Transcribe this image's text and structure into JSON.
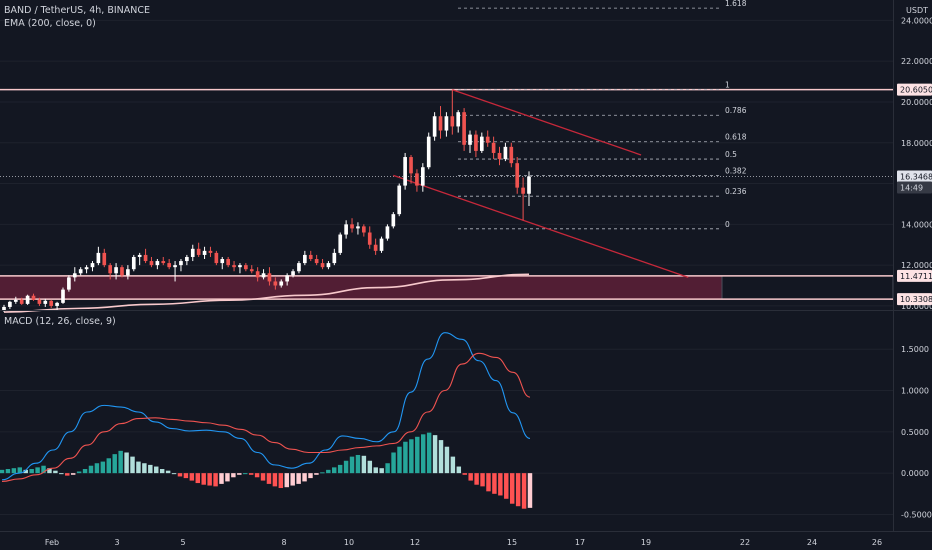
{
  "header": {
    "symbol_line": "BAND / TetherUS, 4h, BINANCE",
    "indicator_line": "EMA (200, close, 0)",
    "currency": "USDT"
  },
  "macd_header": {
    "label": "MACD (12, 26, close, 9)"
  },
  "colors": {
    "background": "#131722",
    "candle_up": "#ffffff",
    "candle_down": "#ef5350",
    "ema": "#f8c9cc",
    "zone_fill": "#5a1f36",
    "channel": "#c6283a",
    "macd_line": "#2196f3",
    "signal_line": "#ef5350",
    "hist_up_strong": "#26a69a",
    "hist_up_weak": "#b2dfdb",
    "hist_down_strong": "#ff5252",
    "hist_down_weak": "#ffcdd2"
  },
  "price_axis": {
    "ticks": [
      "24.0000",
      "22.0000",
      "20.0000",
      "18.0000",
      "16.0000",
      "14.0000",
      "12.0000",
      "10.0000"
    ],
    "badges": [
      {
        "text": "20.6050",
        "style": "level"
      },
      {
        "text": "16.3468",
        "style": "price"
      },
      {
        "text": "14:49",
        "style": "time"
      },
      {
        "text": "11.4711",
        "style": "level"
      },
      {
        "text": "10.3308",
        "style": "level"
      }
    ]
  },
  "macd_axis": {
    "ticks": [
      "1.5000",
      "1.0000",
      "0.5000",
      "0.0000",
      "-0.5000"
    ]
  },
  "time_axis": {
    "labels": [
      "Feb",
      "3",
      "5",
      "8",
      "10",
      "12",
      "15",
      "17",
      "19",
      "22",
      "24",
      "26"
    ]
  },
  "fibonacci": {
    "levels": [
      {
        "label": "1",
        "price": 20.605
      },
      {
        "label": "0.786",
        "price": 19.35
      },
      {
        "label": "0.618",
        "price": 18.05
      },
      {
        "label": "0.5",
        "price": 17.2
      },
      {
        "label": "0.382",
        "price": 16.4
      },
      {
        "label": "0.236",
        "price": 15.38
      },
      {
        "label": "0",
        "price": 13.78
      },
      {
        "label": "1.618",
        "price": 24.6
      }
    ]
  },
  "horizontal_levels": [
    20.605,
    11.4711,
    10.3308
  ],
  "last_price": 16.3468,
  "support_zone": {
    "top": 11.4711,
    "bottom": 10.3308
  },
  "chart_data": {
    "type": "candlestick",
    "title": "BAND / TetherUS, 4h, BINANCE",
    "interval": "4h",
    "ylim": [
      9.8,
      25.0
    ],
    "ohlc": [
      [
        9.8,
        10.05,
        9.7,
        9.95
      ],
      [
        9.95,
        10.25,
        9.85,
        10.2
      ],
      [
        10.2,
        10.45,
        10.1,
        10.3
      ],
      [
        10.3,
        10.4,
        10.05,
        10.1
      ],
      [
        10.1,
        10.55,
        10.05,
        10.5
      ],
      [
        10.5,
        10.6,
        10.25,
        10.3
      ],
      [
        10.3,
        10.4,
        10.0,
        10.1
      ],
      [
        10.1,
        10.35,
        9.95,
        10.25
      ],
      [
        10.25,
        10.3,
        9.9,
        10.0
      ],
      [
        10.0,
        10.2,
        9.8,
        10.15
      ],
      [
        10.15,
        10.9,
        10.1,
        10.8
      ],
      [
        10.8,
        11.5,
        10.7,
        11.4
      ],
      [
        11.4,
        11.9,
        11.2,
        11.6
      ],
      [
        11.6,
        11.9,
        11.5,
        11.8
      ],
      [
        11.8,
        12.0,
        11.6,
        11.9
      ],
      [
        11.9,
        12.2,
        11.7,
        12.1
      ],
      [
        12.1,
        12.9,
        12.0,
        12.6
      ],
      [
        12.6,
        12.8,
        11.9,
        12.0
      ],
      [
        12.0,
        12.1,
        11.3,
        11.6
      ],
      [
        11.6,
        12.1,
        11.3,
        11.9
      ],
      [
        11.9,
        12.0,
        11.4,
        11.5
      ],
      [
        11.5,
        12.0,
        11.3,
        11.8
      ],
      [
        11.8,
        12.5,
        11.7,
        12.4
      ],
      [
        12.4,
        12.6,
        12.0,
        12.5
      ],
      [
        12.5,
        12.8,
        12.1,
        12.2
      ],
      [
        12.2,
        12.4,
        11.9,
        12.0
      ],
      [
        12.0,
        12.3,
        11.8,
        12.2
      ],
      [
        12.2,
        12.4,
        12.0,
        12.1
      ],
      [
        12.1,
        12.3,
        11.8,
        11.9
      ],
      [
        11.9,
        12.2,
        11.2,
        12.0
      ],
      [
        12.0,
        12.3,
        11.7,
        12.2
      ],
      [
        12.2,
        12.5,
        12.0,
        12.4
      ],
      [
        12.4,
        13.0,
        12.2,
        12.8
      ],
      [
        12.8,
        13.1,
        12.4,
        12.5
      ],
      [
        12.5,
        12.9,
        12.3,
        12.7
      ],
      [
        12.7,
        12.9,
        12.4,
        12.6
      ],
      [
        12.6,
        12.7,
        12.0,
        12.1
      ],
      [
        12.1,
        12.4,
        11.8,
        12.3
      ],
      [
        12.3,
        12.4,
        11.9,
        12.0
      ],
      [
        12.0,
        12.2,
        11.7,
        11.9
      ],
      [
        11.9,
        12.1,
        11.6,
        12.0
      ],
      [
        12.0,
        12.1,
        11.7,
        11.8
      ],
      [
        11.8,
        12.0,
        11.6,
        11.7
      ],
      [
        11.7,
        11.9,
        11.2,
        11.4
      ],
      [
        11.4,
        11.8,
        11.3,
        11.6
      ],
      [
        11.6,
        11.9,
        11.0,
        11.2
      ],
      [
        11.2,
        11.4,
        10.8,
        11.0
      ],
      [
        11.0,
        11.3,
        10.9,
        11.2
      ],
      [
        11.2,
        11.6,
        11.0,
        11.5
      ],
      [
        11.5,
        11.8,
        11.4,
        11.7
      ],
      [
        11.7,
        12.2,
        11.6,
        12.1
      ],
      [
        12.1,
        12.7,
        12.0,
        12.5
      ],
      [
        12.5,
        12.7,
        12.2,
        12.3
      ],
      [
        12.3,
        12.5,
        12.0,
        12.1
      ],
      [
        12.1,
        12.3,
        11.8,
        11.9
      ],
      [
        11.9,
        12.2,
        11.8,
        12.1
      ],
      [
        12.1,
        12.8,
        12.0,
        12.6
      ],
      [
        12.6,
        13.6,
        12.5,
        13.5
      ],
      [
        13.5,
        14.2,
        13.3,
        14.0
      ],
      [
        14.0,
        14.3,
        13.6,
        13.8
      ],
      [
        13.8,
        14.1,
        13.5,
        13.9
      ],
      [
        13.9,
        14.0,
        13.4,
        13.6
      ],
      [
        13.6,
        13.9,
        12.8,
        13.0
      ],
      [
        13.0,
        13.3,
        12.5,
        12.7
      ],
      [
        12.7,
        13.4,
        12.6,
        13.3
      ],
      [
        13.3,
        14.0,
        13.2,
        13.9
      ],
      [
        13.9,
        14.6,
        13.8,
        14.5
      ],
      [
        14.5,
        16.0,
        14.4,
        15.9
      ],
      [
        15.9,
        17.5,
        15.7,
        17.3
      ],
      [
        17.3,
        17.4,
        16.0,
        16.5
      ],
      [
        16.5,
        16.7,
        15.6,
        15.9
      ],
      [
        15.9,
        17.0,
        15.6,
        16.8
      ],
      [
        16.8,
        18.5,
        16.7,
        18.3
      ],
      [
        18.3,
        19.5,
        18.1,
        19.3
      ],
      [
        19.3,
        19.8,
        18.2,
        18.6
      ],
      [
        18.6,
        19.5,
        18.3,
        19.3
      ],
      [
        19.3,
        20.6,
        18.4,
        18.8
      ],
      [
        18.8,
        19.6,
        18.5,
        19.5
      ],
      [
        19.5,
        19.7,
        17.6,
        17.9
      ],
      [
        17.9,
        18.6,
        17.5,
        18.4
      ],
      [
        18.4,
        18.6,
        17.3,
        17.6
      ],
      [
        17.6,
        18.5,
        17.5,
        18.3
      ],
      [
        18.3,
        18.6,
        17.8,
        18.0
      ],
      [
        18.0,
        18.3,
        17.2,
        17.5
      ],
      [
        17.5,
        17.8,
        16.9,
        17.2
      ],
      [
        17.2,
        18.0,
        17.1,
        17.8
      ],
      [
        17.8,
        18.0,
        16.8,
        17.0
      ],
      [
        17.0,
        17.3,
        15.5,
        15.8
      ],
      [
        15.8,
        16.3,
        14.2,
        15.5
      ],
      [
        15.5,
        16.6,
        14.9,
        16.35
      ]
    ],
    "ema200": [
      9.7,
      9.88,
      10.08,
      10.28,
      10.52,
      10.9,
      11.28,
      11.55
    ],
    "macd": {
      "label": "MACD (12, 26, close, 9)",
      "ylim": [
        -0.7,
        1.95
      ],
      "macd_line": [
        -0.08,
        0.0,
        0.12,
        0.28,
        0.5,
        0.74,
        0.82,
        0.8,
        0.74,
        0.62,
        0.54,
        0.51,
        0.52,
        0.5,
        0.42,
        0.25,
        0.1,
        0.06,
        0.12,
        0.28,
        0.45,
        0.42,
        0.38,
        0.5,
        0.98,
        1.38,
        1.7,
        1.62,
        1.36,
        1.12,
        0.73,
        0.42
      ],
      "signal_line": [
        -0.1,
        -0.07,
        -0.02,
        0.06,
        0.18,
        0.34,
        0.5,
        0.6,
        0.66,
        0.67,
        0.65,
        0.63,
        0.61,
        0.58,
        0.53,
        0.46,
        0.37,
        0.29,
        0.25,
        0.25,
        0.28,
        0.31,
        0.33,
        0.36,
        0.5,
        0.74,
        1.0,
        1.32,
        1.45,
        1.4,
        1.22,
        0.92
      ],
      "histogram": [
        0.04,
        0.05,
        0.06,
        0.07,
        0.04,
        0.05,
        0.07,
        0.09,
        0.06,
        0.03,
        0.0,
        -0.03,
        -0.02,
        0.02,
        0.05,
        0.09,
        0.12,
        0.14,
        0.18,
        0.23,
        0.27,
        0.25,
        0.2,
        0.14,
        0.12,
        0.1,
        0.08,
        0.05,
        0.03,
        0.0,
        -0.04,
        -0.06,
        -0.09,
        -0.12,
        -0.14,
        -0.15,
        -0.16,
        -0.13,
        -0.1,
        -0.05,
        -0.02,
        0.0,
        -0.02,
        -0.05,
        -0.09,
        -0.13,
        -0.16,
        -0.18,
        -0.17,
        -0.15,
        -0.13,
        -0.1,
        -0.06,
        -0.02,
        0.01,
        0.04,
        0.07,
        0.1,
        0.15,
        0.2,
        0.22,
        0.21,
        0.15,
        0.07,
        0.06,
        0.12,
        0.25,
        0.32,
        0.38,
        0.41,
        0.44,
        0.47,
        0.49,
        0.46,
        0.4,
        0.32,
        0.2,
        0.08,
        -0.02,
        -0.09,
        -0.14,
        -0.16,
        -0.22,
        -0.25,
        -0.27,
        -0.31,
        -0.37,
        -0.4,
        -0.43,
        -0.42
      ]
    }
  }
}
